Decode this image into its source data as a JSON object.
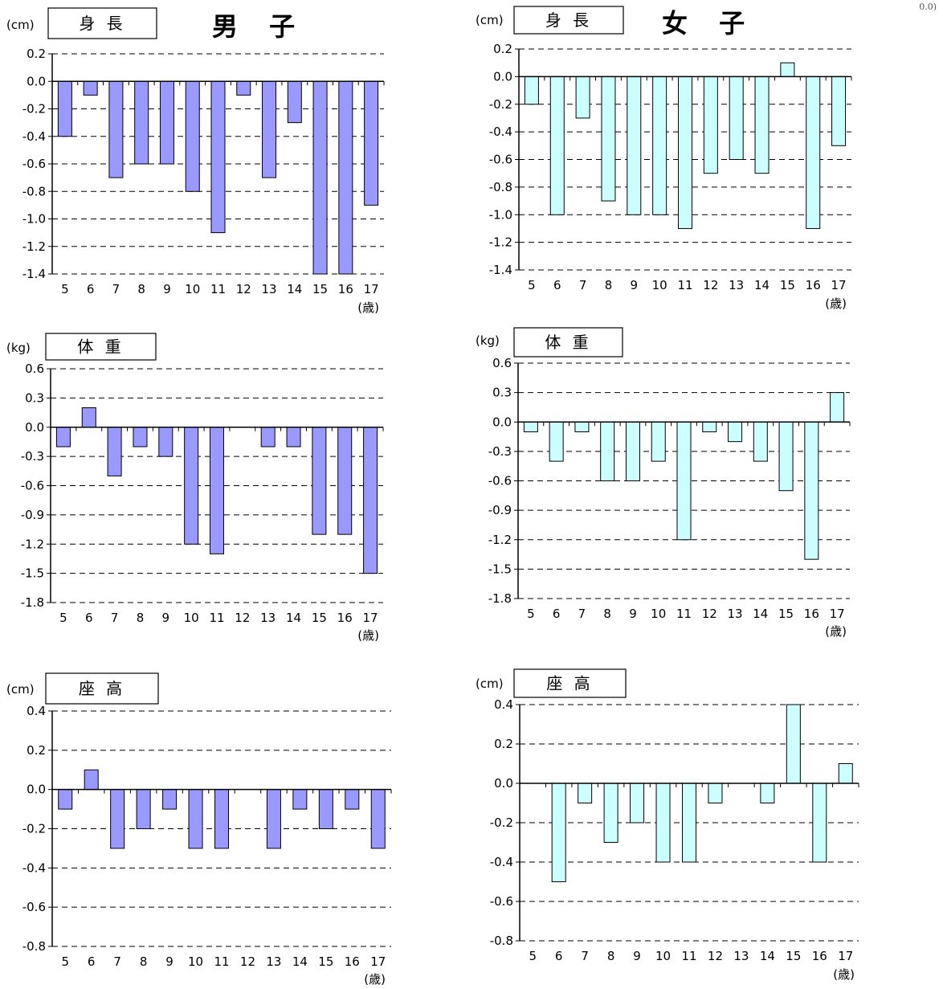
{
  "page": {
    "boys_title": "男 子",
    "girls_title": "女 子",
    "corner_label": "0.0)"
  },
  "colors": {
    "boys_bar": "#9999ff",
    "girls_bar": "#ccffff",
    "bar_stroke": "#000000",
    "grid": "#000000"
  },
  "chart_data": [
    {
      "id": "boys-height",
      "type": "bar",
      "title": "身 長",
      "unit_label": "(cm)",
      "xlabel": "(歳)",
      "categories": [
        "5",
        "6",
        "7",
        "8",
        "9",
        "10",
        "11",
        "12",
        "13",
        "14",
        "15",
        "16",
        "17"
      ],
      "values": [
        -0.4,
        -0.1,
        -0.7,
        -0.6,
        -0.6,
        -0.8,
        -1.1,
        -0.1,
        -0.7,
        -0.3,
        -1.4,
        -1.4,
        -0.9
      ],
      "ylim": [
        -1.4,
        0.2
      ],
      "yticks": [
        0.2,
        0.0,
        -0.2,
        -0.4,
        -0.6,
        -0.8,
        -1.0,
        -1.2,
        -1.4
      ],
      "grid": true
    },
    {
      "id": "girls-height",
      "type": "bar",
      "title": "身 長",
      "unit_label": "(cm)",
      "xlabel": "(歳)",
      "categories": [
        "5",
        "6",
        "7",
        "8",
        "9",
        "10",
        "11",
        "12",
        "13",
        "14",
        "15",
        "16",
        "17"
      ],
      "values": [
        -0.2,
        -1.0,
        -0.3,
        -0.9,
        -1.0,
        -1.0,
        -1.1,
        -0.7,
        -0.6,
        -0.7,
        0.1,
        -1.1,
        -0.5
      ],
      "ylim": [
        -1.4,
        0.2
      ],
      "yticks": [
        0.2,
        0.0,
        -0.2,
        -0.4,
        -0.6,
        -0.8,
        -1.0,
        -1.2,
        -1.4
      ],
      "grid": true
    },
    {
      "id": "boys-weight",
      "type": "bar",
      "title": "体 重",
      "unit_label": "(kg)",
      "xlabel": "(歳)",
      "categories": [
        "5",
        "6",
        "7",
        "8",
        "9",
        "10",
        "11",
        "12",
        "13",
        "14",
        "15",
        "16",
        "17"
      ],
      "values": [
        -0.2,
        0.2,
        -0.5,
        -0.2,
        -0.3,
        -1.2,
        -1.3,
        0.0,
        -0.2,
        -0.2,
        -1.1,
        -1.1,
        -1.5
      ],
      "ylim": [
        -1.8,
        0.6
      ],
      "yticks": [
        0.6,
        0.3,
        0.0,
        -0.3,
        -0.6,
        -0.9,
        -1.2,
        -1.5,
        -1.8
      ],
      "grid": true
    },
    {
      "id": "girls-weight",
      "type": "bar",
      "title": "体 重",
      "unit_label": "(kg)",
      "xlabel": "(歳)",
      "categories": [
        "5",
        "6",
        "7",
        "8",
        "9",
        "10",
        "11",
        "12",
        "13",
        "14",
        "15",
        "16",
        "17"
      ],
      "values": [
        -0.1,
        -0.4,
        -0.1,
        -0.6,
        -0.6,
        -0.4,
        -1.2,
        -0.1,
        -0.2,
        -0.4,
        -0.7,
        -1.4,
        0.3
      ],
      "ylim": [
        -1.8,
        0.6
      ],
      "yticks": [
        0.6,
        0.3,
        0.0,
        -0.3,
        -0.6,
        -0.9,
        -1.2,
        -1.5,
        -1.8
      ],
      "grid": true
    },
    {
      "id": "boys-sitting",
      "type": "bar",
      "title": "座 高",
      "unit_label": "(cm)",
      "xlabel": "(歳)",
      "categories": [
        "5",
        "6",
        "7",
        "8",
        "9",
        "10",
        "11",
        "12",
        "13",
        "14",
        "15",
        "16",
        "17"
      ],
      "values": [
        -0.1,
        0.1,
        -0.3,
        -0.2,
        -0.1,
        -0.3,
        -0.3,
        0.0,
        -0.3,
        -0.1,
        -0.2,
        -0.1,
        -0.3
      ],
      "ylim": [
        -0.8,
        0.4
      ],
      "yticks": [
        0.4,
        0.2,
        0.0,
        -0.2,
        -0.4,
        -0.6,
        -0.8
      ],
      "grid": true
    },
    {
      "id": "girls-sitting",
      "type": "bar",
      "title": "座 高",
      "unit_label": "(cm)",
      "xlabel": "(歳)",
      "categories": [
        "5",
        "6",
        "7",
        "8",
        "9",
        "10",
        "11",
        "12",
        "13",
        "14",
        "15",
        "16",
        "17"
      ],
      "values": [
        0.0,
        -0.5,
        -0.1,
        -0.3,
        -0.2,
        -0.4,
        -0.4,
        -0.1,
        0.0,
        -0.1,
        0.4,
        -0.4,
        0.1
      ],
      "ylim": [
        -0.8,
        0.4
      ],
      "yticks": [
        0.4,
        0.2,
        0.0,
        -0.2,
        -0.4,
        -0.6,
        -0.8
      ],
      "grid": true
    }
  ]
}
